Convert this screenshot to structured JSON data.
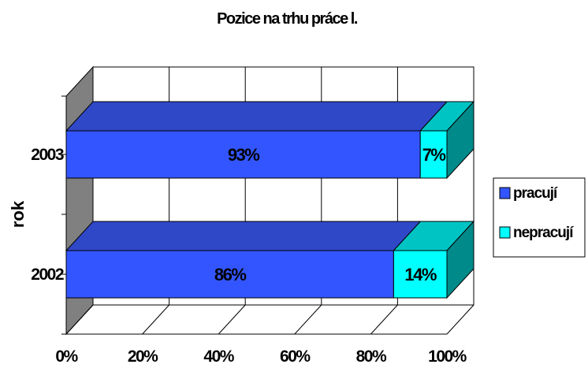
{
  "chart_data": {
    "type": "bar",
    "orientation": "horizontal",
    "stacked": "percent",
    "three_d": true,
    "title": "Pozice na trhu práce l.",
    "ylabel": "rok",
    "xlabel": "",
    "categories": [
      "2003",
      "2002"
    ],
    "series": [
      {
        "name": "pracují",
        "values": [
          93,
          86
        ],
        "labels": [
          "93%",
          "86%"
        ],
        "color": "#3355ff",
        "top_color": "#2f48c8",
        "side_color": "#2a3aa0"
      },
      {
        "name": "nepracují",
        "values": [
          7,
          14
        ],
        "labels": [
          "7%",
          "14%"
        ],
        "color": "#00ffff",
        "top_color": "#00c4c4",
        "side_color": "#008a8a"
      }
    ],
    "xlim": [
      0,
      100
    ],
    "xticks": [
      "0%",
      "20%",
      "40%",
      "60%",
      "80%",
      "100%"
    ],
    "grid": true,
    "legend": "right",
    "colors": {
      "wall_side": "#808080",
      "grid": "#000000"
    }
  }
}
